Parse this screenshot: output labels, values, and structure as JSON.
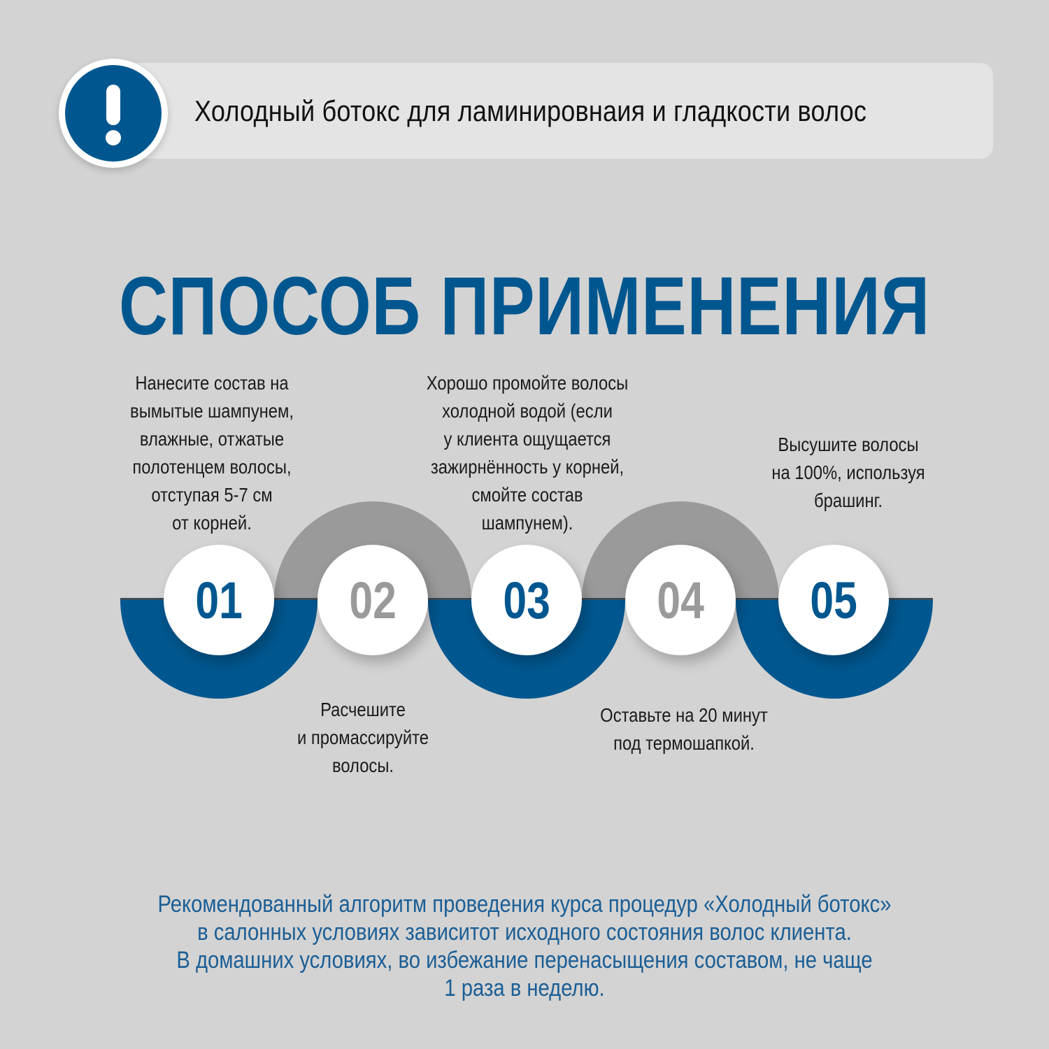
{
  "header": {
    "text": "Холодный ботокс для ламинировнаия и гладкости волос",
    "icon": "exclamation-icon"
  },
  "title": "СПОСОБ ПРИМЕНЕНИЯ",
  "colors": {
    "accent": "#00578f",
    "grey_arc": "#9a9a9a",
    "background": "#d3d3d3"
  },
  "steps": [
    {
      "number": "01",
      "text": "Нанесите состав на\nвымытые шампунем,\nвлажные, отжатые\nполотенцем волосы,\nотступая 5-7 см\nот корней."
    },
    {
      "number": "02",
      "text": "Расчешите\nи промассируйте\nволосы."
    },
    {
      "number": "03",
      "text": "Хорошо промойте волосы\nхолодной водой (если\nу клиента ощущается\nзажирнённость у корней,\nсмойте состав\nшампунем)."
    },
    {
      "number": "04",
      "text": "Оставьте на 20 минут\nпод термошапкой."
    },
    {
      "number": "05",
      "text": "Высушите волосы\nна 100%, используя\nбрашинг."
    }
  ],
  "footer": "Рекомендованный алгоритм проведения курса процедур «Холодный ботокс»\nв салонных условиях зависитот исходного состояния волос клиента.\nВ домашних условиях, во избежание перенасыщения составом, не чаще\n1 раза в неделю."
}
